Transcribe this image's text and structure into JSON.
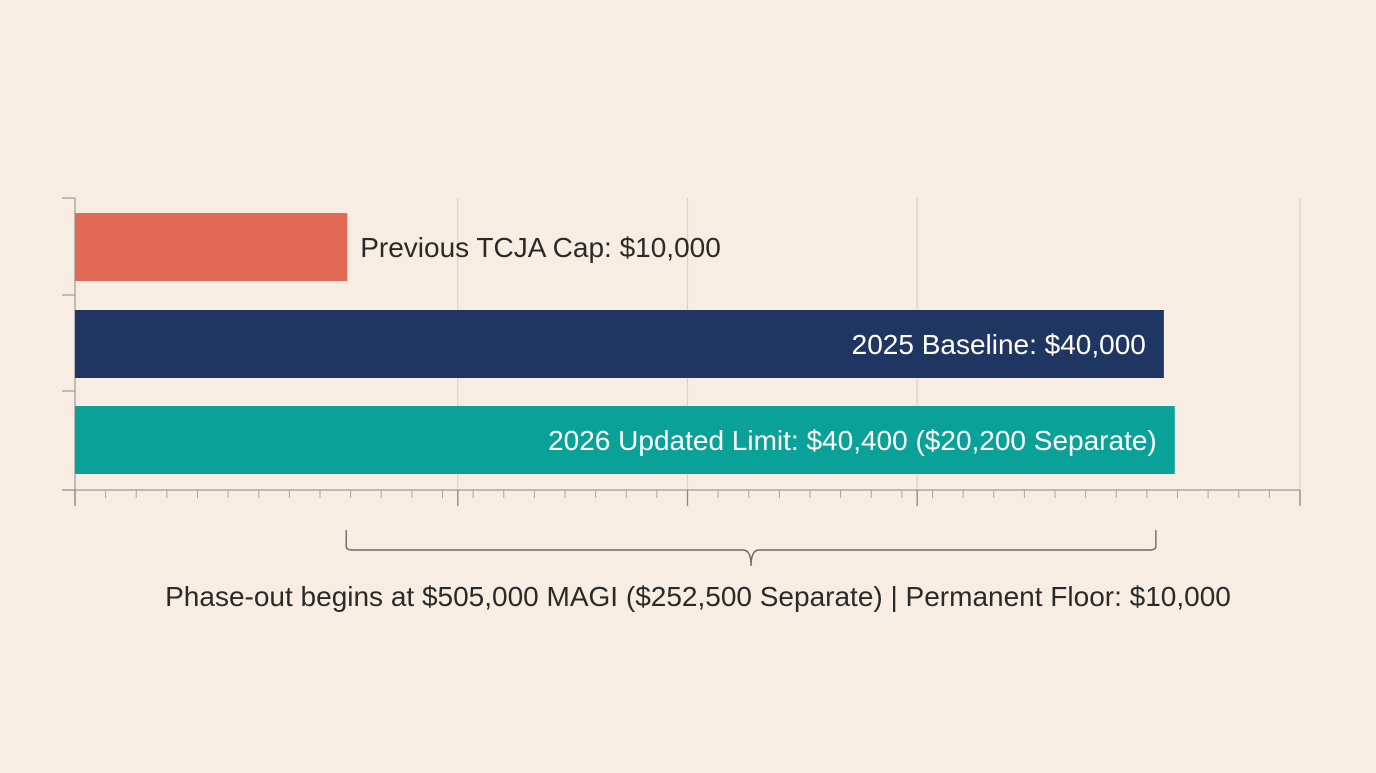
{
  "chart_data": {
    "type": "bar",
    "orientation": "horizontal",
    "categories": [
      "Previous TCJA Cap: $10,000",
      "2025 Baseline: $40,000",
      "2026 Updated Limit: $40,400 ($20,200 Separate)"
    ],
    "values": [
      10000,
      40000,
      40400
    ],
    "colors": [
      "#e06a56",
      "#203662",
      "#0aa198"
    ],
    "label_placement": [
      "outside-end",
      "inside-end",
      "inside-end"
    ],
    "label_colors": [
      "#2a2a2a",
      "#ffffff",
      "#ffffff"
    ],
    "xlim": [
      0,
      45000
    ],
    "grid": true,
    "title": "",
    "xlabel": "",
    "ylabel": "",
    "annotation": {
      "text": "Phase-out begins at $505,000 MAGI ($252,500 Separate) | Permanent Floor: $10,000",
      "bracket_range": [
        10000,
        40000
      ]
    }
  }
}
